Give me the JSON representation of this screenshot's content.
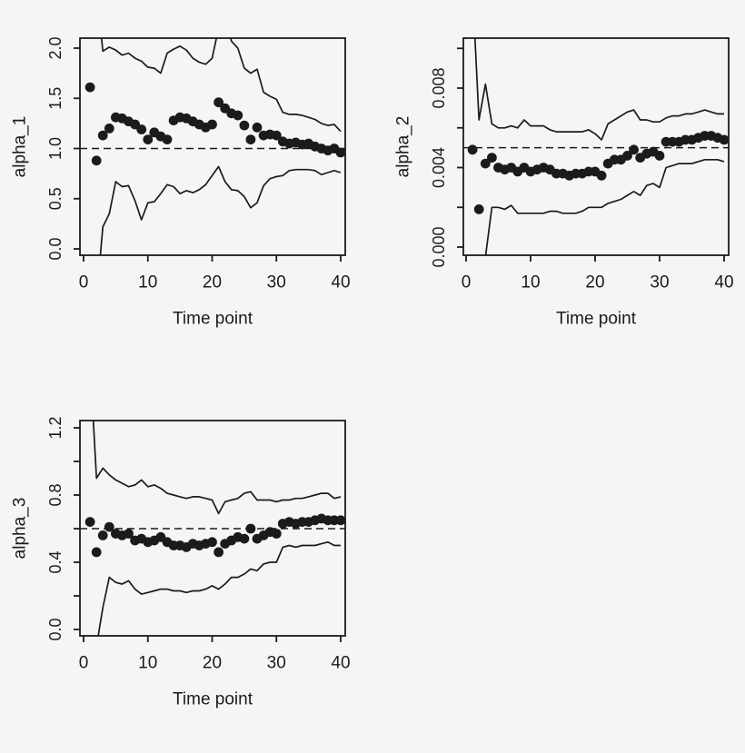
{
  "page": {
    "bg": "#f6f5f4",
    "ink": "#1b1b1b"
  },
  "chart_data": [
    {
      "type": "scatter",
      "title": "",
      "xlabel": "Time point",
      "ylabel": "alpha_1",
      "xlim": [
        0,
        40
      ],
      "ylim": [
        0,
        2.0
      ],
      "grid": false,
      "legend": null,
      "reference": {
        "value": 1.0,
        "style": "dashed"
      },
      "xticks": {
        "values": [
          0,
          10,
          20,
          30,
          40
        ],
        "labels": [
          "0",
          "10",
          "20",
          "30",
          "40"
        ]
      },
      "yticks": {
        "values": [
          0,
          0.5,
          1.0,
          1.5,
          2.0
        ],
        "labels": [
          "0.0",
          "0.5",
          "1.0",
          "1.5",
          "2.0"
        ]
      },
      "x": [
        1,
        2,
        3,
        4,
        5,
        6,
        7,
        8,
        9,
        10,
        11,
        12,
        13,
        14,
        15,
        16,
        17,
        18,
        19,
        20,
        21,
        22,
        23,
        24,
        25,
        26,
        27,
        28,
        29,
        30,
        31,
        32,
        33,
        34,
        35,
        36,
        37,
        38,
        39,
        40
      ],
      "series": [
        {
          "name": "upper-confidence-band",
          "type": "line",
          "values": [
            4.0,
            2.6,
            1.97,
            2.01,
            1.98,
            1.93,
            1.95,
            1.9,
            1.87,
            1.81,
            1.8,
            1.75,
            1.95,
            1.99,
            2.02,
            1.98,
            1.9,
            1.86,
            1.84,
            1.9,
            2.2,
            2.3,
            2.07,
            2.0,
            1.8,
            1.75,
            1.79,
            1.56,
            1.52,
            1.49,
            1.36,
            1.34,
            1.34,
            1.33,
            1.31,
            1.29,
            1.25,
            1.23,
            1.24,
            1.17
          ]
        },
        {
          "name": "lower-confidence-band",
          "type": "line",
          "values": [
            -1.5,
            -0.5,
            0.22,
            0.35,
            0.67,
            0.62,
            0.63,
            0.48,
            0.29,
            0.46,
            0.47,
            0.55,
            0.64,
            0.62,
            0.55,
            0.58,
            0.56,
            0.59,
            0.64,
            0.73,
            0.82,
            0.67,
            0.59,
            0.58,
            0.52,
            0.41,
            0.46,
            0.63,
            0.7,
            0.72,
            0.73,
            0.78,
            0.79,
            0.79,
            0.79,
            0.78,
            0.74,
            0.76,
            0.78,
            0.76
          ]
        },
        {
          "name": "estimate-points",
          "type": "points",
          "values": [
            1.61,
            0.88,
            1.13,
            1.2,
            1.31,
            1.3,
            1.27,
            1.24,
            1.19,
            1.09,
            1.16,
            1.12,
            1.09,
            1.28,
            1.31,
            1.3,
            1.27,
            1.24,
            1.21,
            1.24,
            1.46,
            1.4,
            1.35,
            1.33,
            1.23,
            1.09,
            1.21,
            1.13,
            1.14,
            1.13,
            1.07,
            1.05,
            1.06,
            1.04,
            1.05,
            1.02,
            1.0,
            0.98,
            1.0,
            0.96
          ]
        }
      ]
    },
    {
      "type": "scatter",
      "title": "",
      "xlabel": "Time point",
      "ylabel": "alpha_2",
      "xlim": [
        0,
        40
      ],
      "ylim": [
        0,
        0.01
      ],
      "grid": false,
      "legend": null,
      "reference": {
        "value": 0.005,
        "style": "dashed"
      },
      "xticks": {
        "values": [
          0,
          10,
          20,
          30,
          40
        ],
        "labels": [
          "0",
          "10",
          "20",
          "30",
          "40"
        ]
      },
      "yticks": {
        "values": [
          0,
          0.002,
          0.004,
          0.006,
          0.008,
          0.01
        ],
        "labels": [
          "0.000",
          null,
          "0.004",
          null,
          "0.008",
          null
        ]
      },
      "x": [
        1,
        2,
        3,
        4,
        5,
        6,
        7,
        8,
        9,
        10,
        11,
        12,
        13,
        14,
        15,
        16,
        17,
        18,
        19,
        20,
        21,
        22,
        23,
        24,
        25,
        26,
        27,
        28,
        29,
        30,
        31,
        32,
        33,
        34,
        35,
        36,
        37,
        38,
        39,
        40
      ],
      "series": [
        {
          "name": "upper-confidence-band",
          "type": "line",
          "values": [
            0.013,
            0.0064,
            0.0082,
            0.0062,
            0.006,
            0.006,
            0.0061,
            0.006,
            0.0064,
            0.0061,
            0.0061,
            0.0061,
            0.0059,
            0.0058,
            0.0058,
            0.0058,
            0.0058,
            0.0058,
            0.0059,
            0.0057,
            0.0054,
            0.0062,
            0.0064,
            0.0066,
            0.0068,
            0.0069,
            0.0064,
            0.0064,
            0.0063,
            0.0063,
            0.0065,
            0.0066,
            0.0066,
            0.0067,
            0.0067,
            0.0068,
            0.0069,
            0.0068,
            0.0067,
            0.0067
          ]
        },
        {
          "name": "lower-confidence-band",
          "type": "line",
          "values": [
            -0.003,
            -0.002,
            -0.0005,
            0.002,
            0.002,
            0.0019,
            0.0021,
            0.0017,
            0.0017,
            0.0017,
            0.0017,
            0.0017,
            0.0018,
            0.0018,
            0.0017,
            0.0017,
            0.0017,
            0.0018,
            0.002,
            0.002,
            0.002,
            0.0022,
            0.0023,
            0.0024,
            0.0026,
            0.0028,
            0.0026,
            0.0031,
            0.0032,
            0.003,
            0.004,
            0.0041,
            0.0042,
            0.0042,
            0.0042,
            0.0043,
            0.0044,
            0.0044,
            0.0044,
            0.0043
          ]
        },
        {
          "name": "estimate-points",
          "type": "points",
          "values": [
            0.0049,
            0.0019,
            0.0042,
            0.0045,
            0.004,
            0.0039,
            0.004,
            0.0038,
            0.004,
            0.0038,
            0.0039,
            0.004,
            0.0039,
            0.0037,
            0.0037,
            0.0036,
            0.0037,
            0.0037,
            0.0038,
            0.0038,
            0.0036,
            0.0042,
            0.0044,
            0.0044,
            0.0046,
            0.0049,
            0.0045,
            0.0047,
            0.0048,
            0.0046,
            0.0053,
            0.0053,
            0.0053,
            0.0054,
            0.0054,
            0.0055,
            0.0056,
            0.0056,
            0.0055,
            0.0054
          ]
        }
      ]
    },
    {
      "type": "scatter",
      "title": "",
      "xlabel": "Time point",
      "ylabel": "alpha_3",
      "xlim": [
        0,
        40
      ],
      "ylim": [
        0,
        1.2
      ],
      "grid": false,
      "legend": null,
      "reference": {
        "value": 0.6,
        "style": "dashed"
      },
      "xticks": {
        "values": [
          0,
          10,
          20,
          30,
          40
        ],
        "labels": [
          "0",
          "10",
          "20",
          "30",
          "40"
        ]
      },
      "yticks": {
        "values": [
          0,
          0.2,
          0.4,
          0.6,
          0.8,
          1.0,
          1.2
        ],
        "labels": [
          "0.0",
          null,
          "0.4",
          null,
          "0.8",
          null,
          "1.2"
        ]
      },
      "x": [
        1,
        2,
        3,
        4,
        5,
        6,
        7,
        8,
        9,
        10,
        11,
        12,
        13,
        14,
        15,
        16,
        17,
        18,
        19,
        20,
        21,
        22,
        23,
        24,
        25,
        26,
        27,
        28,
        29,
        30,
        31,
        32,
        33,
        34,
        35,
        36,
        37,
        38,
        39,
        40
      ],
      "series": [
        {
          "name": "upper-confidence-band",
          "type": "line",
          "values": [
            1.6,
            0.9,
            0.96,
            0.92,
            0.89,
            0.87,
            0.85,
            0.86,
            0.89,
            0.85,
            0.86,
            0.84,
            0.81,
            0.8,
            0.79,
            0.78,
            0.79,
            0.79,
            0.78,
            0.77,
            0.69,
            0.76,
            0.77,
            0.78,
            0.81,
            0.82,
            0.77,
            0.77,
            0.77,
            0.76,
            0.77,
            0.77,
            0.78,
            0.78,
            0.79,
            0.8,
            0.81,
            0.81,
            0.78,
            0.79
          ]
        },
        {
          "name": "lower-confidence-band",
          "type": "line",
          "values": [
            -0.5,
            -0.1,
            0.13,
            0.31,
            0.28,
            0.27,
            0.29,
            0.24,
            0.21,
            0.22,
            0.23,
            0.24,
            0.24,
            0.23,
            0.23,
            0.22,
            0.23,
            0.23,
            0.24,
            0.26,
            0.24,
            0.27,
            0.31,
            0.31,
            0.33,
            0.36,
            0.35,
            0.39,
            0.4,
            0.4,
            0.49,
            0.5,
            0.49,
            0.5,
            0.5,
            0.5,
            0.51,
            0.52,
            0.5,
            0.5
          ]
        },
        {
          "name": "estimate-points",
          "type": "points",
          "values": [
            0.64,
            0.46,
            0.56,
            0.61,
            0.57,
            0.56,
            0.57,
            0.53,
            0.54,
            0.52,
            0.53,
            0.55,
            0.52,
            0.5,
            0.5,
            0.49,
            0.51,
            0.5,
            0.51,
            0.52,
            0.46,
            0.51,
            0.53,
            0.55,
            0.54,
            0.6,
            0.54,
            0.56,
            0.58,
            0.57,
            0.63,
            0.64,
            0.63,
            0.64,
            0.64,
            0.65,
            0.66,
            0.65,
            0.65,
            0.65
          ]
        }
      ]
    }
  ]
}
